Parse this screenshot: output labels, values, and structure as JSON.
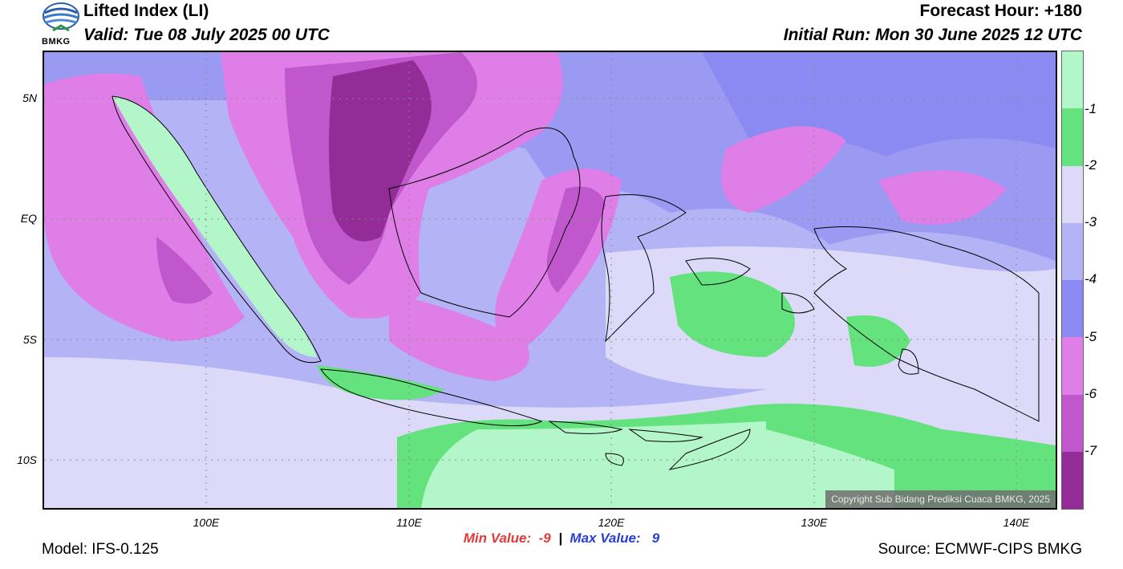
{
  "header": {
    "logo_text": "BMKG",
    "title": "Lifted Index (LI)",
    "valid": "Valid: Tue 08 July 2025 00 UTC",
    "forecast_hour": "Forecast Hour: +180",
    "initial_run": "Initial Run: Mon 30 June 2025 12 UTC"
  },
  "map": {
    "lat_labels": [
      "5N",
      "EQ",
      "5S",
      "10S"
    ],
    "lon_labels": [
      "100E",
      "110E",
      "120E",
      "130E",
      "140E"
    ],
    "copyright": "Copyright Sub Bidang Prediksi Cuaca BMKG, 2025"
  },
  "colorbar": {
    "labels": [
      "-1",
      "-2",
      "-3",
      "-4",
      "-5",
      "-6",
      "-7"
    ],
    "colors": [
      "#b3f6c9",
      "#63e27d",
      "#dcdaf8",
      "#b3b3f6",
      "#8a8af2",
      "#de7ee6",
      "#c157cd",
      "#932c96"
    ]
  },
  "stats": {
    "min_label": "Min Value:",
    "min_value": "-9",
    "separator": "|",
    "max_label": "Max Value:",
    "max_value": "9"
  },
  "footer": {
    "model": "Model: IFS-0.125",
    "source": "Source: ECMWF-CIPS BMKG"
  }
}
